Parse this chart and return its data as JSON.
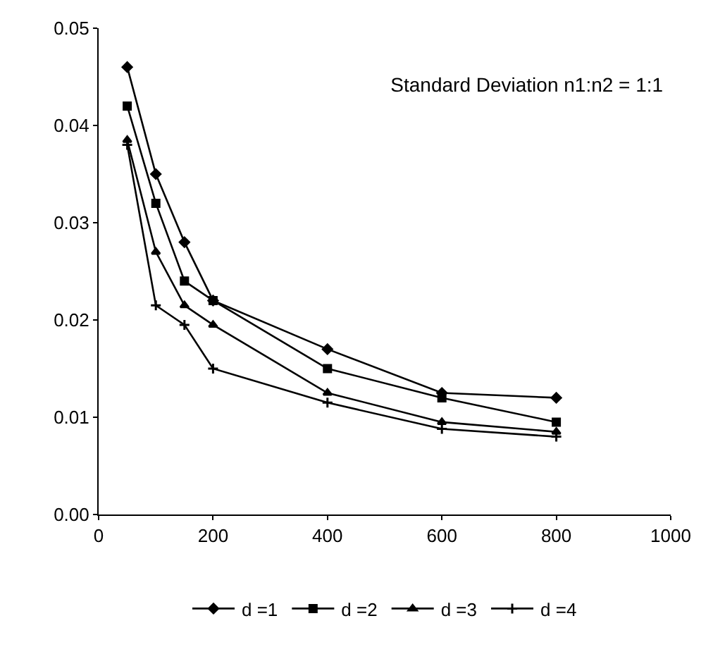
{
  "chart_data": {
    "type": "line",
    "title": "Standard Deviation n1:n2 = 1:1",
    "x": [
      50,
      100,
      150,
      200,
      400,
      600,
      800
    ],
    "series": [
      {
        "name": "d =1",
        "color": "#000000",
        "marker": "diamond",
        "values": [
          0.046,
          0.035,
          0.028,
          0.022,
          0.017,
          0.0125,
          0.012
        ]
      },
      {
        "name": "d =2",
        "color": "#000000",
        "marker": "square",
        "values": [
          0.042,
          0.032,
          0.024,
          0.022,
          0.015,
          0.012,
          0.0095
        ]
      },
      {
        "name": "d =3",
        "color": "#000000",
        "marker": "triangle",
        "values": [
          0.0385,
          0.027,
          0.0215,
          0.0195,
          0.0125,
          0.0095,
          0.0085
        ]
      },
      {
        "name": "d =4",
        "color": "#000000",
        "marker": "cross",
        "values": [
          0.038,
          0.0215,
          0.0195,
          0.015,
          0.0115,
          0.0088,
          0.008
        ]
      }
    ],
    "xlim": [
      0,
      1000
    ],
    "xticks": [
      0,
      200,
      400,
      600,
      800,
      1000
    ],
    "ylim": [
      0,
      0.05
    ],
    "yticks": [
      {
        "value": 0,
        "label": "0.00"
      },
      {
        "value": 0.01,
        "label": "0.01"
      },
      {
        "value": 0.02,
        "label": "0.02"
      },
      {
        "value": 0.03,
        "label": "0.03"
      },
      {
        "value": 0.04,
        "label": "0.04"
      },
      {
        "value": 0.05,
        "label": "0.05"
      }
    ],
    "legend": "bottom"
  }
}
